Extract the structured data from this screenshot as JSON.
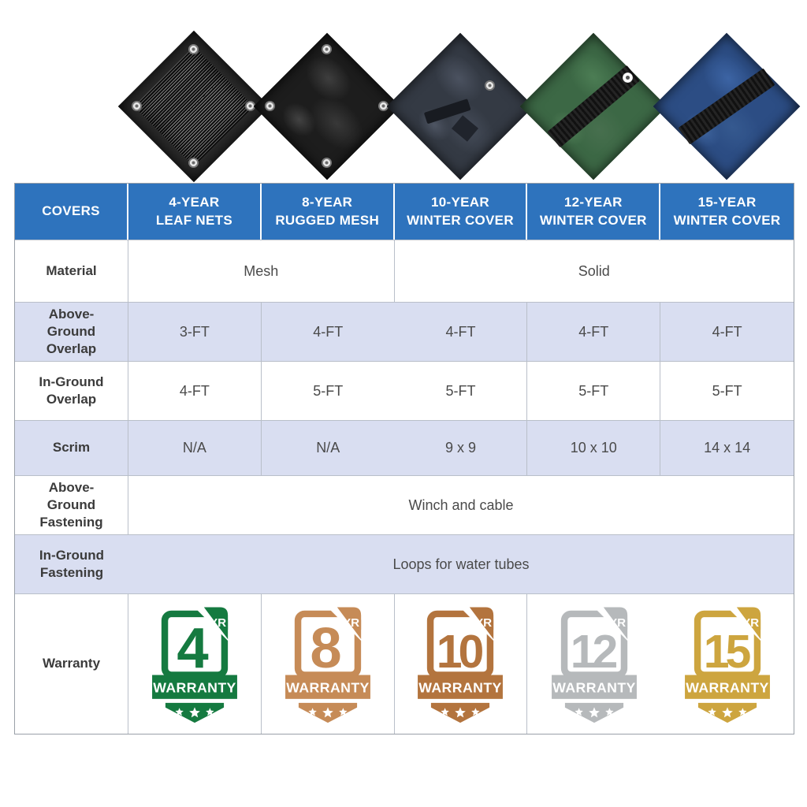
{
  "colors": {
    "header_blue": "#2e73bd",
    "row_alt_lavender": "#d9def1",
    "border_gray": "#b9bfc9",
    "label_text": "#3b3b3b",
    "value_text": "#4a4a4a"
  },
  "product_images": [
    {
      "name": "4-year-leaf-net-cover",
      "appearance": "black mesh tarp with corner grommets"
    },
    {
      "name": "8-year-rugged-mesh-cover",
      "appearance": "black rugged mesh tarp with corner grommets"
    },
    {
      "name": "10-year-winter-cover",
      "appearance": "dark slate solid tarp with center panel and grommet"
    },
    {
      "name": "12-year-winter-cover",
      "appearance": "green solid tarp with black center panel and grommet"
    },
    {
      "name": "15-year-winter-cover",
      "appearance": "blue solid tarp with black center panel"
    }
  ],
  "table": {
    "corner_header": "COVERS",
    "column_headers": [
      {
        "line1": "4-YEAR",
        "line2": "LEAF NETS"
      },
      {
        "line1": "8-YEAR",
        "line2": "RUGGED MESH"
      },
      {
        "line1": "10-YEAR",
        "line2": "WINTER COVER"
      },
      {
        "line1": "12-YEAR",
        "line2": "WINTER COVER"
      },
      {
        "line1": "15-YEAR",
        "line2": "WINTER COVER"
      }
    ],
    "rows": {
      "material": {
        "label": "Material",
        "mesh": "Mesh",
        "solid": "Solid"
      },
      "above_ground_overlap": {
        "label": "Above-Ground Overlap",
        "values": [
          "3-FT",
          "4-FT",
          "4-FT",
          "4-FT",
          "4-FT"
        ]
      },
      "in_ground_overlap": {
        "label": "In-Ground Overlap",
        "values": [
          "4-FT",
          "5-FT",
          "5-FT",
          "5-FT",
          "5-FT"
        ]
      },
      "scrim": {
        "label": "Scrim",
        "values": [
          "N/A",
          "N/A",
          "9 x 9",
          "10 x 10",
          "14 x 14"
        ]
      },
      "above_ground_fastening": {
        "label": "Above-Ground Fastening",
        "value": "Winch and cable"
      },
      "in_ground_fastening": {
        "label": "In-Ground Fastening",
        "value": "Loops for water tubes"
      },
      "warranty": {
        "label": "Warranty"
      }
    }
  },
  "warranty_badges": [
    {
      "year": "4",
      "unit": "YR",
      "text": "WARRANTY",
      "color": "#157a40"
    },
    {
      "year": "8",
      "unit": "YR",
      "text": "WARRANTY",
      "color": "#c68b57"
    },
    {
      "year": "10",
      "unit": "YR",
      "text": "WARRANTY",
      "color": "#b3743e"
    },
    {
      "year": "12",
      "unit": "YR",
      "text": "WARRANTY",
      "color": "#b6b9bb"
    },
    {
      "year": "15",
      "unit": "YR",
      "text": "WARRANTY",
      "color": "#cda53f"
    }
  ]
}
